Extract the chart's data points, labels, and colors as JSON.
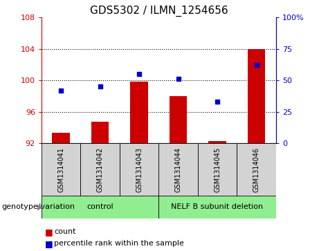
{
  "title": "GDS5302 / ILMN_1254656",
  "samples": [
    "GSM1314041",
    "GSM1314042",
    "GSM1314043",
    "GSM1314044",
    "GSM1314045",
    "GSM1314046"
  ],
  "count_values": [
    93.3,
    94.7,
    99.8,
    98.0,
    92.3,
    104.0
  ],
  "percentile_values": [
    42,
    45,
    55,
    51,
    33,
    62
  ],
  "left_ylim": [
    92,
    108
  ],
  "left_yticks": [
    92,
    96,
    100,
    104,
    108
  ],
  "right_ylim": [
    0,
    100
  ],
  "right_yticks": [
    0,
    25,
    50,
    75,
    100
  ],
  "right_yticklabels": [
    "0",
    "25",
    "50",
    "75",
    "100%"
  ],
  "bar_color": "#cc0000",
  "dot_color": "#0000cc",
  "bar_bottom": 92,
  "control_label": "control",
  "nelf_label": "NELF B subunit deletion",
  "group_color": "#90ee90",
  "genotype_label": "genotype/variation",
  "legend_count_label": "count",
  "legend_pct_label": "percentile rank within the sample",
  "title_fontsize": 11,
  "tick_fontsize": 8,
  "sample_fontsize": 7,
  "group_fontsize": 8,
  "legend_fontsize": 8,
  "genotype_fontsize": 8,
  "bar_color_left_axis": "#cc0000",
  "dot_color_right_axis": "#0000cc",
  "box_color": "#d3d3d3",
  "grid_linestyle": ":",
  "grid_linewidth": 0.8,
  "grid_yticks": [
    96,
    100,
    104
  ]
}
